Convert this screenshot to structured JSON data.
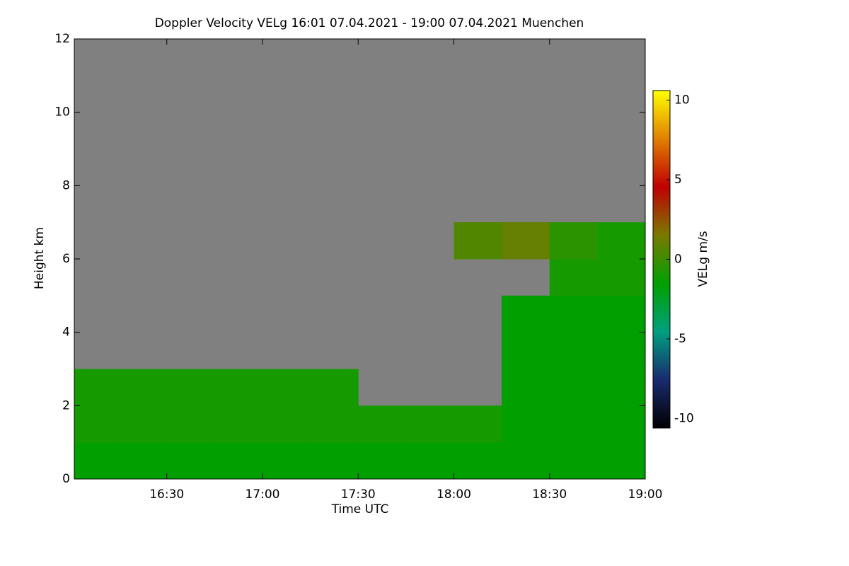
{
  "chart_data": {
    "type": "heatmap",
    "title": "Doppler Velocity VELg   16:01 07.04.2021 - 19:00 07.04.2021 Muenchen",
    "x_label": "Time UTC",
    "y_label": "Height km",
    "colorbar_label": "VELg m/s",
    "xlim": [
      961,
      1140
    ],
    "xticks": [
      {
        "value": 990,
        "label": "16:30"
      },
      {
        "value": 1020,
        "label": "17:00"
      },
      {
        "value": 1050,
        "label": "17:30"
      },
      {
        "value": 1080,
        "label": "18:00"
      },
      {
        "value": 1110,
        "label": "18:30"
      },
      {
        "value": 1140,
        "label": "19:00"
      }
    ],
    "ylim": [
      0,
      12
    ],
    "yticks": [
      0,
      2,
      4,
      6,
      8,
      10,
      12
    ],
    "clim": [
      -10.6,
      10.6
    ],
    "colorbar_ticks": [
      10,
      5,
      0,
      -5,
      -10
    ],
    "colormap": [
      "#000000",
      "#1a2a6e",
      "#00a080",
      "#00a000",
      "#7a7a00",
      "#c00000",
      "#e08000",
      "#ffff00"
    ],
    "missing_color": "#808080",
    "x_bins": [
      961,
      975,
      990,
      1005,
      1020,
      1035,
      1050,
      1065,
      1080,
      1095,
      1110,
      1125,
      1140
    ],
    "y_bins": [
      0,
      1,
      2,
      3,
      4,
      5,
      6,
      7,
      8,
      9,
      10,
      11,
      12
    ],
    "values": [
      [
        -1.5,
        -1.5,
        -1.5,
        -1.5,
        -1.5,
        -1.5,
        -1.5,
        -1.5,
        -1.5,
        -1.5,
        -1.5,
        -1.5
      ],
      [
        -1,
        -1,
        -1,
        -1,
        -1,
        -1,
        -1,
        -1,
        -1,
        -1.5,
        -1.5,
        -1.5
      ],
      [
        -1,
        -1,
        -1,
        -1,
        -1,
        -1,
        null,
        null,
        null,
        -1.5,
        -1.5,
        -1.5
      ],
      [
        null,
        null,
        null,
        null,
        null,
        null,
        null,
        null,
        null,
        -1.5,
        -1.5,
        -1.5
      ],
      [
        null,
        null,
        null,
        null,
        null,
        null,
        null,
        null,
        null,
        -1.5,
        -1.5,
        -1.5
      ],
      [
        null,
        null,
        null,
        null,
        null,
        null,
        null,
        null,
        null,
        null,
        -1,
        -1
      ],
      [
        null,
        null,
        null,
        null,
        null,
        null,
        null,
        null,
        0.5,
        1,
        -0.5,
        -1
      ],
      [
        null,
        null,
        null,
        null,
        null,
        null,
        null,
        null,
        null,
        null,
        null,
        null
      ],
      [
        null,
        null,
        null,
        null,
        null,
        null,
        null,
        null,
        null,
        null,
        null,
        null
      ],
      [
        null,
        null,
        null,
        null,
        null,
        null,
        null,
        null,
        null,
        null,
        null,
        null
      ],
      [
        null,
        null,
        null,
        null,
        null,
        null,
        null,
        null,
        null,
        null,
        null,
        null
      ],
      [
        null,
        null,
        null,
        null,
        null,
        null,
        null,
        null,
        null,
        null,
        null,
        null
      ]
    ]
  }
}
